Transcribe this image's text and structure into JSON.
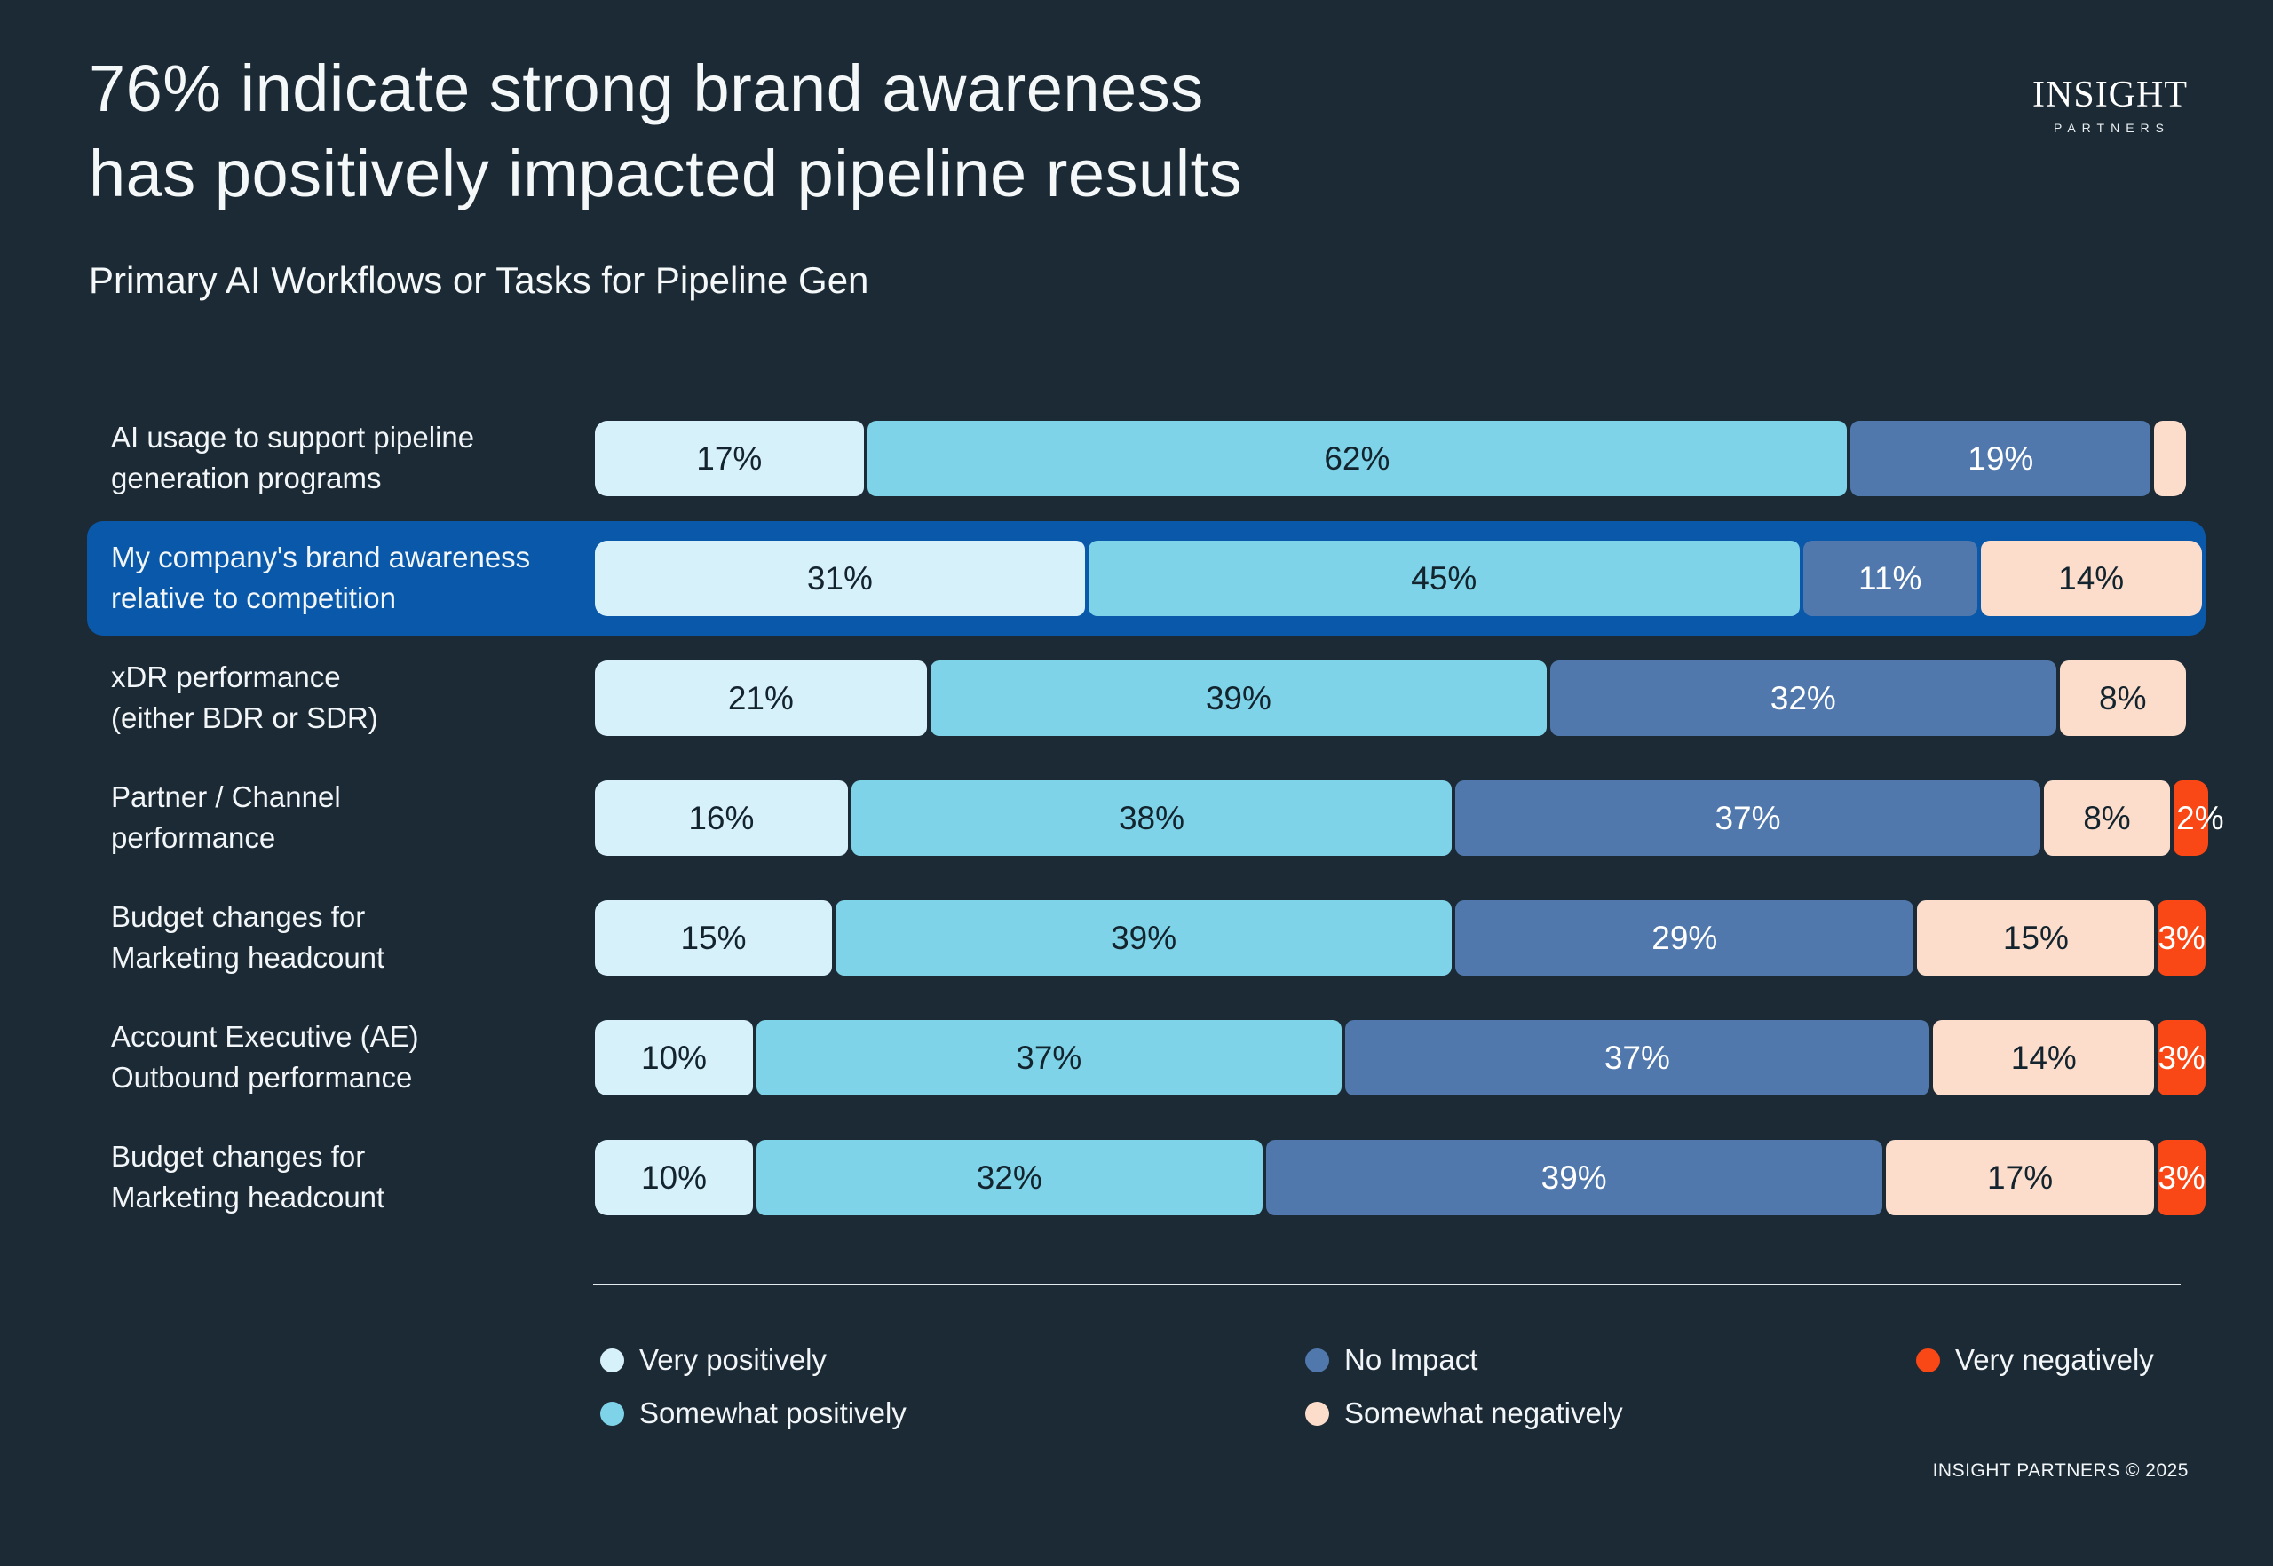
{
  "header": {
    "title": "76% indicate strong brand awareness\nhas positively impacted pipeline results",
    "subtitle": "Primary AI Workflows or Tasks for Pipeline Gen"
  },
  "logo": {
    "main": "INSIGHT",
    "sub": "PARTNERS"
  },
  "footer": {
    "text": "INSIGHT PARTNERS © 2025"
  },
  "palette": {
    "background": "#1b2a34",
    "highlight_row": "#0a58a9",
    "very_positively": "#d7f1fb",
    "somewhat_positively": "#7ed3e8",
    "no_impact": "#5078ad",
    "somewhat_negatively": "#fcdccb",
    "very_negatively": "#f94715",
    "dark_text": "#13242e",
    "light_text": "#ffffff",
    "divider": "#e4ebee"
  },
  "chart_data": {
    "type": "bar",
    "orientation": "horizontal",
    "stacked": true,
    "unit": "%",
    "x_range": [
      0,
      100
    ],
    "grid": false,
    "legend_position": "bottom",
    "legend": [
      {
        "label": "Very positively",
        "key": "very_positively"
      },
      {
        "label": "Somewhat positively",
        "key": "somewhat_positively"
      },
      {
        "label": "No Impact",
        "key": "no_impact"
      },
      {
        "label": "Somewhat negatively",
        "key": "somewhat_negatively"
      },
      {
        "label": "Very negatively",
        "key": "very_negatively"
      }
    ],
    "rows": [
      {
        "category": "AI usage to support pipeline\ngeneration programs",
        "highlight": false,
        "segments": [
          {
            "key": "very_positively",
            "value": 17
          },
          {
            "key": "somewhat_positively",
            "value": 62
          },
          {
            "key": "no_impact",
            "value": 19
          },
          {
            "key": "somewhat_negatively",
            "value": 2,
            "label": ""
          }
        ]
      },
      {
        "category": "My company's brand awareness\nrelative to competition",
        "highlight": true,
        "segments": [
          {
            "key": "very_positively",
            "value": 31
          },
          {
            "key": "somewhat_positively",
            "value": 45
          },
          {
            "key": "no_impact",
            "value": 11
          },
          {
            "key": "somewhat_negatively",
            "value": 14
          }
        ]
      },
      {
        "category": "xDR performance\n(either BDR or SDR)",
        "highlight": false,
        "segments": [
          {
            "key": "very_positively",
            "value": 21
          },
          {
            "key": "somewhat_positively",
            "value": 39
          },
          {
            "key": "no_impact",
            "value": 32
          },
          {
            "key": "somewhat_negatively",
            "value": 8
          }
        ]
      },
      {
        "category": "Partner / Channel\nperformance",
        "highlight": false,
        "segments": [
          {
            "key": "very_positively",
            "value": 16
          },
          {
            "key": "somewhat_positively",
            "value": 38
          },
          {
            "key": "no_impact",
            "value": 37
          },
          {
            "key": "somewhat_negatively",
            "value": 8
          },
          {
            "key": "very_negatively",
            "value": 2
          }
        ]
      },
      {
        "category": "Budget changes for\nMarketing headcount",
        "highlight": false,
        "segments": [
          {
            "key": "very_positively",
            "value": 15
          },
          {
            "key": "somewhat_positively",
            "value": 39
          },
          {
            "key": "no_impact",
            "value": 29
          },
          {
            "key": "somewhat_negatively",
            "value": 15
          },
          {
            "key": "very_negatively",
            "value": 3
          }
        ]
      },
      {
        "category": "Account Executive (AE)\nOutbound performance",
        "highlight": false,
        "segments": [
          {
            "key": "very_positively",
            "value": 10
          },
          {
            "key": "somewhat_positively",
            "value": 37
          },
          {
            "key": "no_impact",
            "value": 37
          },
          {
            "key": "somewhat_negatively",
            "value": 14
          },
          {
            "key": "very_negatively",
            "value": 3
          }
        ]
      },
      {
        "category": "Budget changes for\nMarketing headcount",
        "highlight": false,
        "segments": [
          {
            "key": "very_positively",
            "value": 10
          },
          {
            "key": "somewhat_positively",
            "value": 32
          },
          {
            "key": "no_impact",
            "value": 39
          },
          {
            "key": "somewhat_negatively",
            "value": 17
          },
          {
            "key": "very_negatively",
            "value": 3
          }
        ]
      }
    ]
  }
}
